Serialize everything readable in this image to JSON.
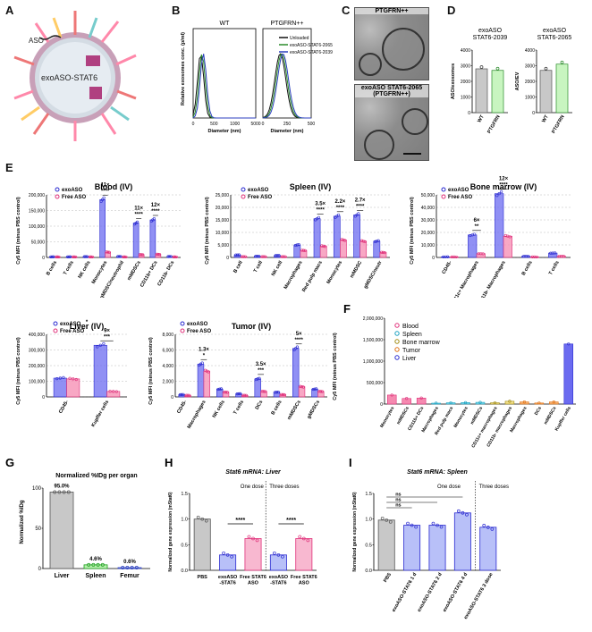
{
  "panels": {
    "A": {
      "letter": "A",
      "labels": [
        "ASO",
        "exoASO-STAT6"
      ]
    },
    "B": {
      "letter": "B",
      "subtitles": [
        "WT",
        "PTGFRN++"
      ],
      "ylabel": "Relative exosomes conc. (p/ml)",
      "xlabel": "Diameter (nm)",
      "xticks": [
        "0",
        "500",
        "1000",
        "5000",
        "0",
        "250",
        "500"
      ],
      "legend": [
        "Unloaded",
        "exoASO-STAT6-2065",
        "exoASO-STAT6-2039"
      ],
      "colors": [
        "#111111",
        "#2a8a2a",
        "#2b3fbf"
      ]
    },
    "C": {
      "letter": "C",
      "captions": [
        "PTGFRN++",
        "exoASO STAT6-2065\n(PTGFRN++)"
      ]
    },
    "D": {
      "letter": "D",
      "charts": [
        {
          "title": "exoASO\nSTAT6-2039",
          "ylabel": "ASO/exosomes",
          "yticks": [
            "0",
            "1000",
            "2000",
            "3000",
            "4000"
          ],
          "categories": [
            "WT",
            "PTGFRN"
          ],
          "values": [
            2800,
            2700
          ]
        },
        {
          "title": "exoASO\nSTAT6-2065",
          "ylabel": "ASO/EV",
          "yticks": [
            "0",
            "1000",
            "2000",
            "3000",
            "4000"
          ],
          "categories": [
            "WT",
            "PTGFRN"
          ],
          "values": [
            2700,
            3100
          ]
        }
      ]
    },
    "E": {
      "letter": "E",
      "ylabel": "Cy5 MFI (minus PBS control)",
      "legend": [
        "exoASO",
        "Free ASO"
      ],
      "blood": {
        "title": "Blood (IV)",
        "yticks": [
          "0",
          "50,000",
          "100,000",
          "150,000",
          "200,000"
        ],
        "categories": [
          "B cells",
          "T cells",
          "NK cells",
          "Monocytes",
          "gMDSC/neutrophil",
          "mMDSCs",
          "CD11b+ DCs",
          "CD11b- DCs"
        ],
        "exo": [
          2000,
          2000,
          2500,
          185000,
          3000,
          110000,
          120000,
          3000
        ],
        "free": [
          1000,
          1000,
          1000,
          17000,
          1000,
          9000,
          10000,
          1000
        ],
        "annotations": [
          "11×\n****",
          "11×\n****",
          "12×\n****"
        ]
      },
      "spleen": {
        "title": "Spleen (IV)",
        "yticks": [
          "0",
          "5,000",
          "10,000",
          "15,000",
          "20,000",
          "25,000"
        ],
        "categories": [
          "B cell",
          "T cell",
          "NK cell",
          "Macrophages",
          "Red pulp macs",
          "Monocytes",
          "mMDSC",
          "gMDSC/neutr"
        ],
        "exo": [
          1000,
          500,
          800,
          5000,
          15500,
          16500,
          17000,
          6500
        ],
        "free": [
          300,
          300,
          300,
          2800,
          4500,
          7000,
          6500,
          2000
        ],
        "annotations": [
          "3.5×\n****",
          "2.2×\n****",
          "2.7×\n****"
        ]
      },
      "marrow": {
        "title": "Bone marrow (IV)",
        "yticks": [
          "0",
          "10,000",
          "20,000",
          "30,000",
          "40,000",
          "50,000"
        ],
        "categories": [
          "CD45-",
          "CD11c+ Macrophages",
          "CD11b- Macrophages",
          "B cells",
          "T cells"
        ],
        "exo": [
          500,
          18000,
          51000,
          1000,
          3500
        ],
        "free": [
          200,
          3000,
          17000,
          300,
          1000
        ],
        "annotations": [
          "6×\n**",
          "12×\n****"
        ]
      },
      "liver": {
        "title": "Liver (IV)",
        "yticks": [
          "0",
          "100,000",
          "200,000",
          "300,000",
          "400,000"
        ],
        "categories": [
          "CD45-",
          "Kupffer cells"
        ],
        "exo": [
          120000,
          330000
        ],
        "free": [
          115000,
          35000
        ],
        "annotations": [
          "*",
          "9×\n***"
        ]
      },
      "tumor": {
        "title": "Tumor (IV)",
        "yticks": [
          "0",
          "2,000",
          "4,000",
          "6,000",
          "8,000"
        ],
        "categories": [
          "CD45-",
          "Macrophages",
          "NK cells",
          "T cells",
          "DCs",
          "B cells",
          "mMDSCs",
          "gMDSCs"
        ],
        "exo": [
          300,
          4200,
          1000,
          400,
          2300,
          600,
          6200,
          1000
        ],
        "free": [
          200,
          3300,
          600,
          200,
          700,
          300,
          1300,
          700
        ],
        "annotations": [
          "1.3×\n*",
          "3.5×\n***",
          "5×\n****"
        ]
      }
    },
    "F": {
      "letter": "F",
      "ylabel": "Cy5 MFI (minus PBS control)",
      "yticks": [
        "0",
        "500,000",
        "1,000,000",
        "1,500,000",
        "2,000,000"
      ],
      "legend": [
        "Blood",
        "Spleen",
        "Bone marrow",
        "Tumor",
        "Liver"
      ],
      "categories": [
        "Monocytes",
        "mMDSCs",
        "CD11b+ DCs",
        "Macrophages",
        "Red pulp macs",
        "Monocytes",
        "mMDSCs",
        "CD11c+ macrophages",
        "CD11b- macrophages",
        "Macrophages",
        "DCs",
        "mMDSCs",
        "Kupffer cells"
      ],
      "values": [
        210000,
        130000,
        140000,
        20000,
        30000,
        35000,
        40000,
        30000,
        65000,
        50000,
        25000,
        50000,
        1400000
      ],
      "groups": [
        0,
        0,
        0,
        1,
        1,
        1,
        1,
        2,
        2,
        3,
        3,
        3,
        4
      ]
    },
    "G": {
      "letter": "G",
      "title": "Normalized %IDg per organ",
      "ylabel": "Normalized %IDg",
      "yticks": [
        "0",
        "50",
        "100"
      ],
      "categories": [
        "Liver",
        "Spleen",
        "Femur"
      ],
      "values": [
        95.0,
        4.6,
        0.6
      ],
      "labels": [
        "95.0%",
        "4.6%",
        "0.6%"
      ]
    },
    "H": {
      "letter": "H",
      "title": "Stat6 mRNA: Liver",
      "ylabel": "Normalized gene expression (mStat6)",
      "yticks": [
        "0.0",
        "0.5",
        "1.0",
        "1.5"
      ],
      "group_labels": [
        "One dose",
        "Three doses"
      ],
      "categories": [
        "PBS",
        "exoASO\n-STAT6",
        "Free STAT6\nASO",
        "exoASO\n-STAT6",
        "Free STAT6\nASO"
      ],
      "values": [
        1.0,
        0.3,
        0.62,
        0.3,
        0.62
      ],
      "sig": [
        "****",
        "****"
      ]
    },
    "I": {
      "letter": "I",
      "title": "Stat6 mRNA: Spleen",
      "ylabel": "Normalized gene expression (mStat6)",
      "yticks": [
        "0.0",
        "0.5",
        "1.0",
        "1.5"
      ],
      "group_labels": [
        "One dose",
        "Three doses"
      ],
      "categories": [
        "PBS",
        "exoASO-STAT6 1 d",
        "exoASO-STAT6 2 d",
        "exoASO-STAT6 4 d",
        "exoASO-STAT6 3 dose"
      ],
      "values": [
        0.98,
        0.88,
        0.88,
        1.12,
        0.84
      ],
      "sig": [
        "ns",
        "ns",
        "ns"
      ]
    }
  },
  "chart_data": [
    {
      "type": "line",
      "title": "WT",
      "xlabel": "Diameter (nm)",
      "ylabel": "Relative exosomes conc. (p/ml)",
      "series": [
        {
          "name": "Unloaded",
          "peak_x": 150
        },
        {
          "name": "exoASO-STAT6-2065",
          "peak_x": 140
        },
        {
          "name": "exoASO-STAT6-2039",
          "peak_x": 150
        }
      ]
    },
    {
      "type": "bar",
      "title": "Blood (IV)",
      "categories": [
        "B cells",
        "T cells",
        "NK cells",
        "Monocytes",
        "gMDSC/neutrophil",
        "mMDSCs",
        "CD11b+ DCs",
        "CD11b- DCs"
      ],
      "series": [
        {
          "name": "exoASO",
          "values": [
            2000,
            2000,
            2500,
            185000,
            3000,
            110000,
            120000,
            3000
          ]
        },
        {
          "name": "Free ASO",
          "values": [
            1000,
            1000,
            1000,
            17000,
            1000,
            9000,
            10000,
            1000
          ]
        }
      ],
      "ylim": [
        0,
        200000
      ]
    },
    {
      "type": "bar",
      "title": "Spleen (IV)",
      "categories": [
        "B cell",
        "T cell",
        "NK cell",
        "Macrophages",
        "Red pulp macs",
        "Monocytes",
        "mMDSC",
        "gMDSC/neutr"
      ],
      "series": [
        {
          "name": "exoASO",
          "values": [
            1000,
            500,
            800,
            5000,
            15500,
            16500,
            17000,
            6500
          ]
        },
        {
          "name": "Free ASO",
          "values": [
            300,
            300,
            300,
            2800,
            4500,
            7000,
            6500,
            2000
          ]
        }
      ],
      "ylim": [
        0,
        25000
      ]
    },
    {
      "type": "bar",
      "title": "Bone marrow (IV)",
      "categories": [
        "CD45-",
        "CD11c+ Macrophages",
        "CD11b- Macrophages",
        "B cells",
        "T cells"
      ],
      "series": [
        {
          "name": "exoASO",
          "values": [
            500,
            18000,
            51000,
            1000,
            3500
          ]
        },
        {
          "name": "Free ASO",
          "values": [
            200,
            3000,
            17000,
            300,
            1000
          ]
        }
      ],
      "ylim": [
        0,
        50000
      ]
    },
    {
      "type": "bar",
      "title": "Liver (IV)",
      "categories": [
        "CD45-",
        "Kupffer cells"
      ],
      "series": [
        {
          "name": "exoASO",
          "values": [
            120000,
            330000
          ]
        },
        {
          "name": "Free ASO",
          "values": [
            115000,
            35000
          ]
        }
      ],
      "ylim": [
        0,
        400000
      ]
    },
    {
      "type": "bar",
      "title": "Tumor (IV)",
      "categories": [
        "CD45-",
        "Macrophages",
        "NK cells",
        "T cells",
        "DCs",
        "B cells",
        "mMDSCs",
        "gMDSCs"
      ],
      "series": [
        {
          "name": "exoASO",
          "values": [
            300,
            4200,
            1000,
            400,
            2300,
            600,
            6200,
            1000
          ]
        },
        {
          "name": "Free ASO",
          "values": [
            200,
            3300,
            600,
            200,
            700,
            300,
            1300,
            700
          ]
        }
      ],
      "ylim": [
        0,
        8000
      ]
    },
    {
      "type": "bar",
      "title": "Normalized %IDg per organ",
      "categories": [
        "Liver",
        "Spleen",
        "Femur"
      ],
      "values": [
        95.0,
        4.6,
        0.6
      ],
      "ylim": [
        0,
        100
      ]
    },
    {
      "type": "bar",
      "title": "Stat6 mRNA: Liver",
      "categories": [
        "PBS",
        "exoASO-STAT6",
        "Free STAT6 ASO",
        "exoASO-STAT6",
        "Free STAT6 ASO"
      ],
      "values": [
        1.0,
        0.3,
        0.62,
        0.3,
        0.62
      ],
      "ylim": [
        0,
        1.5
      ]
    },
    {
      "type": "bar",
      "title": "Stat6 mRNA: Spleen",
      "categories": [
        "PBS",
        "exoASO-STAT6 1 d",
        "exoASO-STAT6 2 d",
        "exoASO-STAT6 4 d",
        "exoASO-STAT6 3 dose"
      ],
      "values": [
        0.98,
        0.88,
        0.88,
        1.12,
        0.84
      ],
      "ylim": [
        0,
        1.5
      ]
    }
  ],
  "colors": {
    "exo": "#6b6bf0",
    "exo_dark": "#2b2bd0",
    "free": "#f58ab0",
    "free_dark": "#e0307a",
    "grey": "#c8c8c8",
    "green": "#5ad65a"
  }
}
